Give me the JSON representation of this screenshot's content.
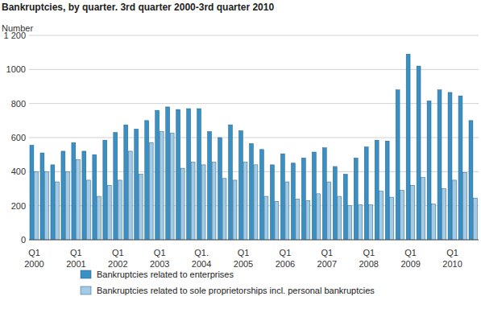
{
  "chart_data": {
    "type": "bar",
    "title": "Bankruptcies, by quarter. 3rd quarter 2000-3rd quarter 2010",
    "y_label": "Number",
    "categories": [
      "Q1 2000",
      null,
      null,
      null,
      "Q1 2001",
      null,
      null,
      null,
      "Q1 2002",
      null,
      null,
      null,
      "Q1 2003",
      null,
      null,
      null,
      "Q1. 2004",
      null,
      null,
      null,
      "Q1 2005",
      null,
      null,
      null,
      "Q1 2006",
      null,
      null,
      null,
      "Q1 2007",
      null,
      null,
      null,
      "Q1 2008",
      null,
      null,
      null,
      "Q1 2009",
      null,
      null,
      null,
      "Q1 2010",
      null,
      null
    ],
    "series": [
      {
        "name": "Bankruptcies related to enterprises",
        "color": "#3a8fc3",
        "values": [
          555,
          510,
          440,
          520,
          570,
          520,
          500,
          585,
          630,
          675,
          650,
          700,
          760,
          780,
          765,
          770,
          770,
          635,
          600,
          675,
          640,
          565,
          530,
          440,
          505,
          450,
          480,
          515,
          540,
          430,
          385,
          480,
          545,
          585,
          580,
          880,
          1090,
          1020,
          815,
          880,
          865,
          845,
          700
        ]
      },
      {
        "name": "Bankruptcies related to sole proprietorships incl. personal bankruptcies",
        "color": "#a3cbe6",
        "values": [
          400,
          400,
          340,
          400,
          470,
          350,
          255,
          320,
          350,
          520,
          385,
          570,
          635,
          625,
          420,
          455,
          440,
          455,
          360,
          350,
          455,
          440,
          255,
          225,
          340,
          240,
          230,
          270,
          340,
          255,
          200,
          205,
          205,
          285,
          250,
          290,
          320,
          365,
          210,
          300,
          350,
          395,
          245
        ]
      }
    ],
    "ylim": [
      0,
      1200
    ],
    "yticks": [
      0,
      200,
      400,
      600,
      800,
      1000,
      {
        "value": 1200,
        "label": "1 200"
      }
    ],
    "grid": true,
    "legend": "bottom"
  }
}
